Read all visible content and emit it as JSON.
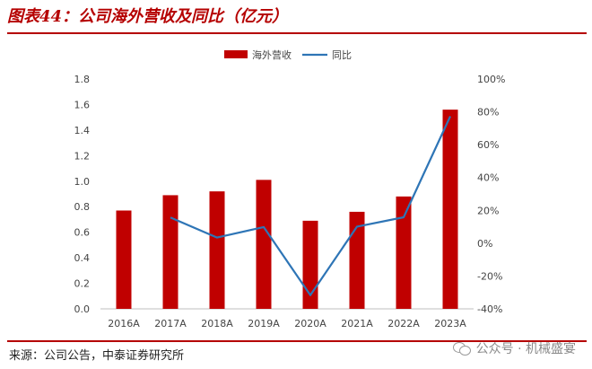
{
  "figure": {
    "title": "图表44：公司海外营收及同比（亿元）",
    "source": "来源：公司公告，中泰证券研究所",
    "watermark": "公众号 · 机械盛宴"
  },
  "chart_data": {
    "type": "bar",
    "categories": [
      "2016A",
      "2017A",
      "2018A",
      "2019A",
      "2020A",
      "2021A",
      "2022A",
      "2023A"
    ],
    "series": [
      {
        "name": "海外营收",
        "type": "bar",
        "axis": "left",
        "color": "#c00000",
        "values": [
          0.77,
          0.89,
          0.92,
          1.01,
          0.69,
          0.76,
          0.88,
          1.56
        ]
      },
      {
        "name": "同比",
        "type": "line",
        "axis": "right",
        "color": "#2e75b6",
        "values": [
          null,
          15.6,
          3.4,
          9.8,
          -31.7,
          10.1,
          15.8,
          77.3
        ]
      }
    ],
    "yleft": {
      "min": 0,
      "max": 1.8,
      "step": 0.2,
      "ticks": [
        "0.0",
        "0.2",
        "0.4",
        "0.6",
        "0.8",
        "1.0",
        "1.2",
        "1.4",
        "1.6",
        "1.8"
      ]
    },
    "yright": {
      "min": -40,
      "max": 100,
      "step": 20,
      "ticks": [
        "-40%",
        "-20%",
        "0%",
        "20%",
        "40%",
        "60%",
        "80%",
        "100%"
      ]
    },
    "grid": false,
    "legend": "top-center"
  }
}
